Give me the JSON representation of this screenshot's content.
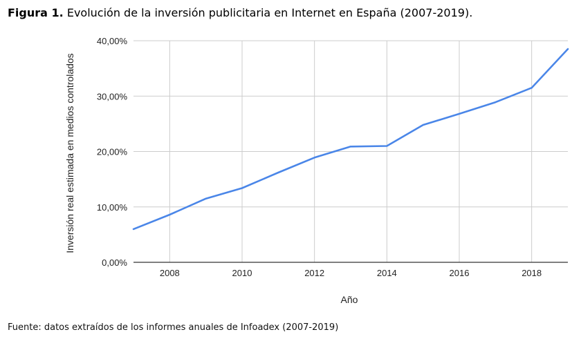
{
  "figure": {
    "label": "Figura 1.",
    "caption": "Evolución de la inversión publicitaria en Internet en España (2007-2019)."
  },
  "source": "Fuente: datos extraídos de los informes anuales de Infoadex (2007-2019)",
  "chart_data": {
    "type": "line",
    "x": [
      2007,
      2008,
      2009,
      2010,
      2011,
      2012,
      2013,
      2014,
      2015,
      2016,
      2017,
      2018,
      2019
    ],
    "series": [
      {
        "values": [
          6.0,
          8.6,
          11.5,
          13.4,
          16.2,
          18.9,
          20.9,
          21.0,
          24.8,
          26.8,
          28.9,
          31.5,
          38.5
        ],
        "color": "#4a86e8"
      }
    ],
    "xlabel": "Año",
    "ylabel": "Inversión real estimada en medios controlados",
    "xlim": [
      2007,
      2019
    ],
    "ylim": [
      0,
      40
    ],
    "x_ticks": [
      "2008",
      "2010",
      "2012",
      "2014",
      "2016",
      "2018"
    ],
    "y_ticks": [
      "0,00%",
      "10,00%",
      "20,00%",
      "30,00%",
      "40,00%"
    ],
    "x_tick_values": [
      2008,
      2010,
      2012,
      2014,
      2016,
      2018
    ],
    "y_tick_values": [
      0,
      10,
      20,
      30,
      40
    ],
    "grid": true,
    "legend": "none"
  }
}
